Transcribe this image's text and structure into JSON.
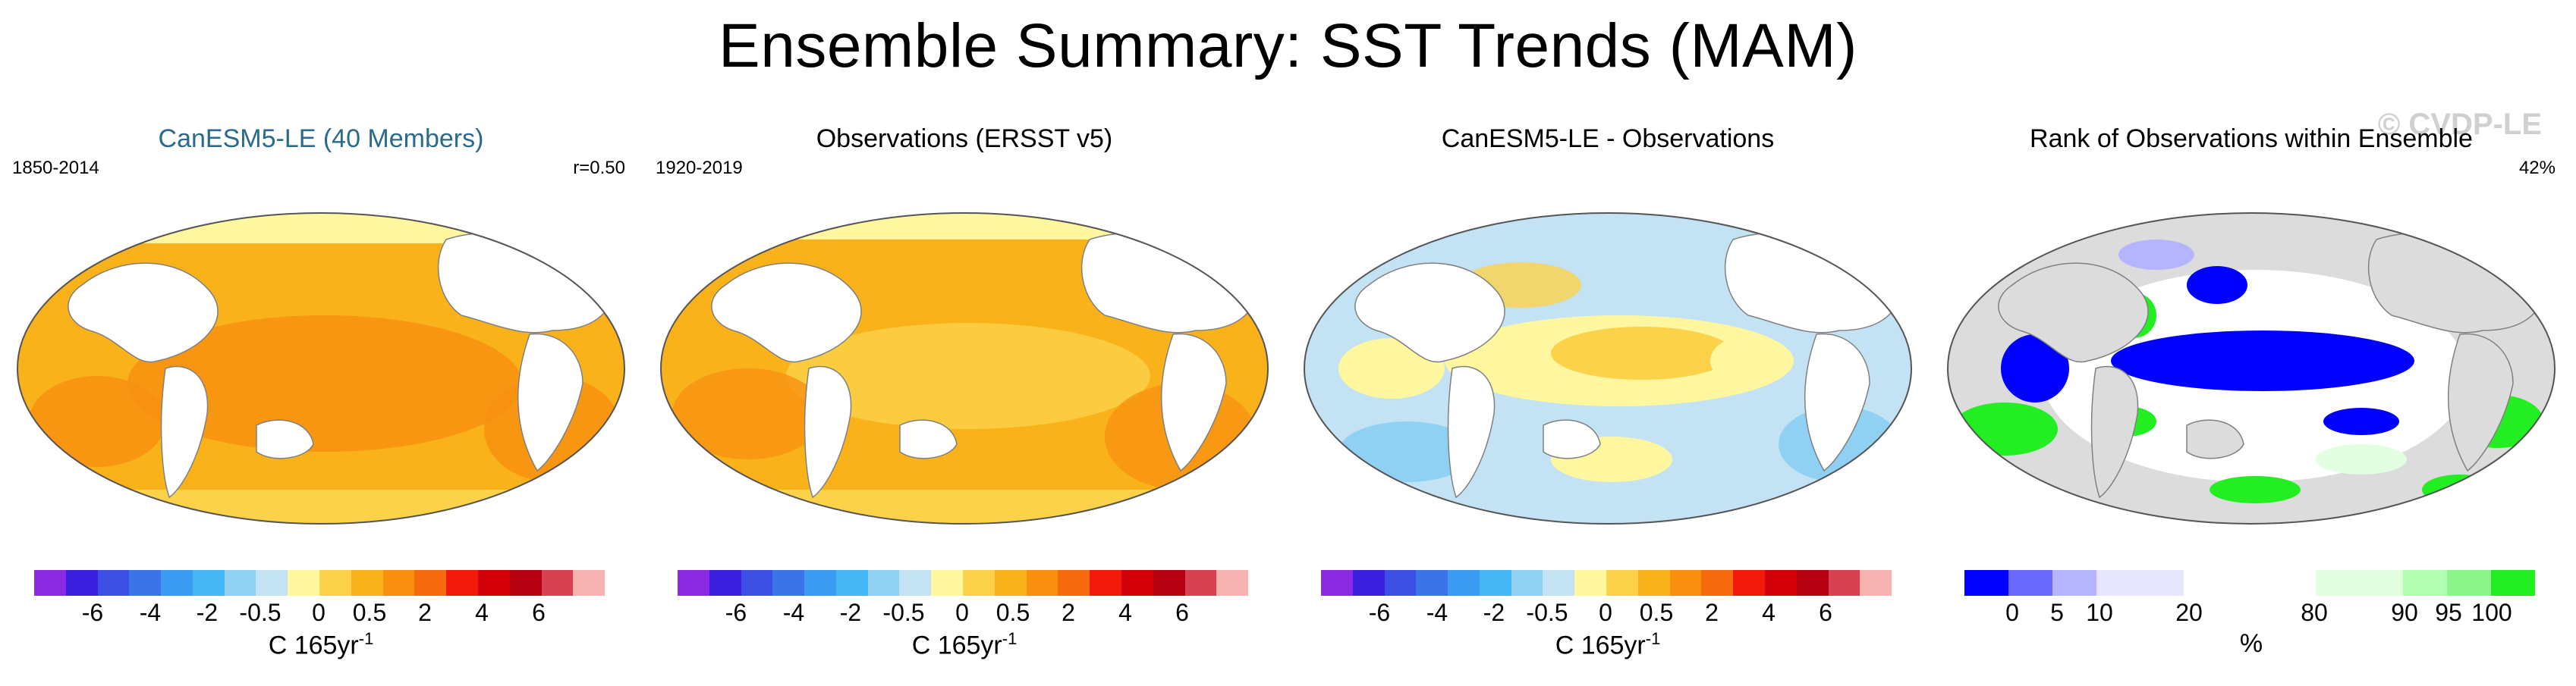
{
  "title": "Ensemble Summary: SST Trends (MAM)",
  "colors": {
    "sst_scale": [
      "#8a2be2",
      "#3a1fe0",
      "#3b4fe4",
      "#3b74e8",
      "#3b9bf0",
      "#45b8f5",
      "#8fd0f3",
      "#c3e3f5",
      "#fff6a0",
      "#fbd24a",
      "#f9b21a",
      "#f88f10",
      "#f56a0c",
      "#f11a0a",
      "#d4000a",
      "#b50012",
      "#d84250",
      "#f7b2b2"
    ],
    "rank_scale": [
      "#0000ff",
      "#6a6aff",
      "#b4b4ff",
      "#e6e6ff",
      "#ffffff",
      "#ffffff",
      "#e2ffe2",
      "#b2ffb2",
      "#8cf58c",
      "#22ee22"
    ],
    "land": "#ffffff",
    "rank_land": "#dcdcdc",
    "coast": "#808080"
  },
  "panels": [
    {
      "title": "CanESM5-LE (40 Members)",
      "left_label": "1850-2014",
      "right_label": "r=0.50",
      "ticks": [
        "-6",
        "-4",
        "-2",
        "-0.5",
        "0",
        "0.5",
        "2",
        "4",
        "6"
      ],
      "unit": "C 165yr",
      "unit_sup": "-1"
    },
    {
      "title": "Observations (ERSST v5)",
      "left_label": "1920-2019",
      "right_label": "",
      "ticks": [
        "-6",
        "-4",
        "-2",
        "-0.5",
        "0",
        "0.5",
        "2",
        "4",
        "6"
      ],
      "unit": "C 165yr",
      "unit_sup": "-1"
    },
    {
      "title": "CanESM5-LE - Observations",
      "left_label": "",
      "right_label": "",
      "ticks": [
        "-6",
        "-4",
        "-2",
        "-0.5",
        "0",
        "0.5",
        "2",
        "4",
        "6"
      ],
      "unit": "C 165yr",
      "unit_sup": "-1"
    },
    {
      "title": "Rank of Observations within Ensemble",
      "left_label": "",
      "right_label": "42%",
      "ticks": [
        "0",
        "5",
        "10",
        "20",
        "80",
        "90",
        "95",
        "100"
      ],
      "unit": "%",
      "unit_sup": "",
      "watermark": "© CVDP-LE"
    }
  ]
}
